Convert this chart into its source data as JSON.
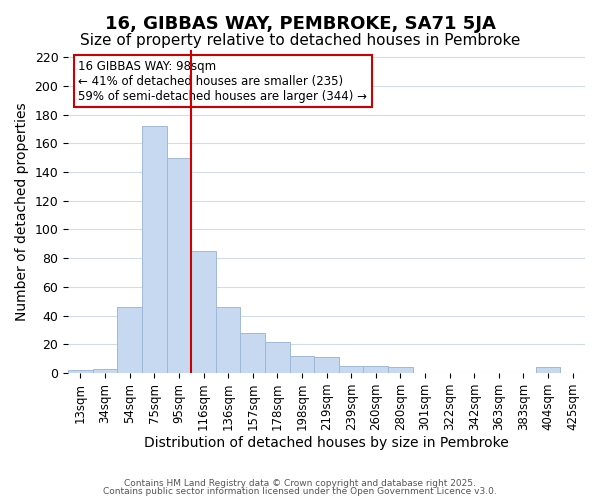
{
  "title": "16, GIBBAS WAY, PEMBROKE, SA71 5JA",
  "subtitle": "Size of property relative to detached houses in Pembroke",
  "xlabel": "Distribution of detached houses by size in Pembroke",
  "ylabel": "Number of detached properties",
  "bar_labels": [
    "13sqm",
    "34sqm",
    "54sqm",
    "75sqm",
    "95sqm",
    "116sqm",
    "136sqm",
    "157sqm",
    "178sqm",
    "198sqm",
    "219sqm",
    "239sqm",
    "260sqm",
    "280sqm",
    "301sqm",
    "322sqm",
    "342sqm",
    "363sqm",
    "383sqm",
    "404sqm",
    "425sqm"
  ],
  "bar_values": [
    2,
    3,
    46,
    172,
    150,
    85,
    46,
    28,
    22,
    12,
    11,
    5,
    5,
    4,
    0,
    0,
    0,
    0,
    0,
    4,
    0
  ],
  "bar_color": "#c6d9f1",
  "bar_edge_color": "#a0b8d8",
  "vline_x": 4.5,
  "vline_color": "#cc0000",
  "annotation_title": "16 GIBBAS WAY: 98sqm",
  "annotation_line1": "← 41% of detached houses are smaller (235)",
  "annotation_line2": "59% of semi-detached houses are larger (344) →",
  "annotation_box_color": "#ffffff",
  "annotation_box_edge": "#cc0000",
  "ylim": [
    0,
    225
  ],
  "yticks": [
    0,
    20,
    40,
    60,
    80,
    100,
    120,
    140,
    160,
    180,
    200,
    220
  ],
  "footer1": "Contains HM Land Registry data © Crown copyright and database right 2025.",
  "footer2": "Contains public sector information licensed under the Open Government Licence v3.0.",
  "bg_color": "#ffffff",
  "grid_color": "#d0dce8",
  "title_fontsize": 13,
  "subtitle_fontsize": 11,
  "xlabel_fontsize": 10,
  "ylabel_fontsize": 10
}
